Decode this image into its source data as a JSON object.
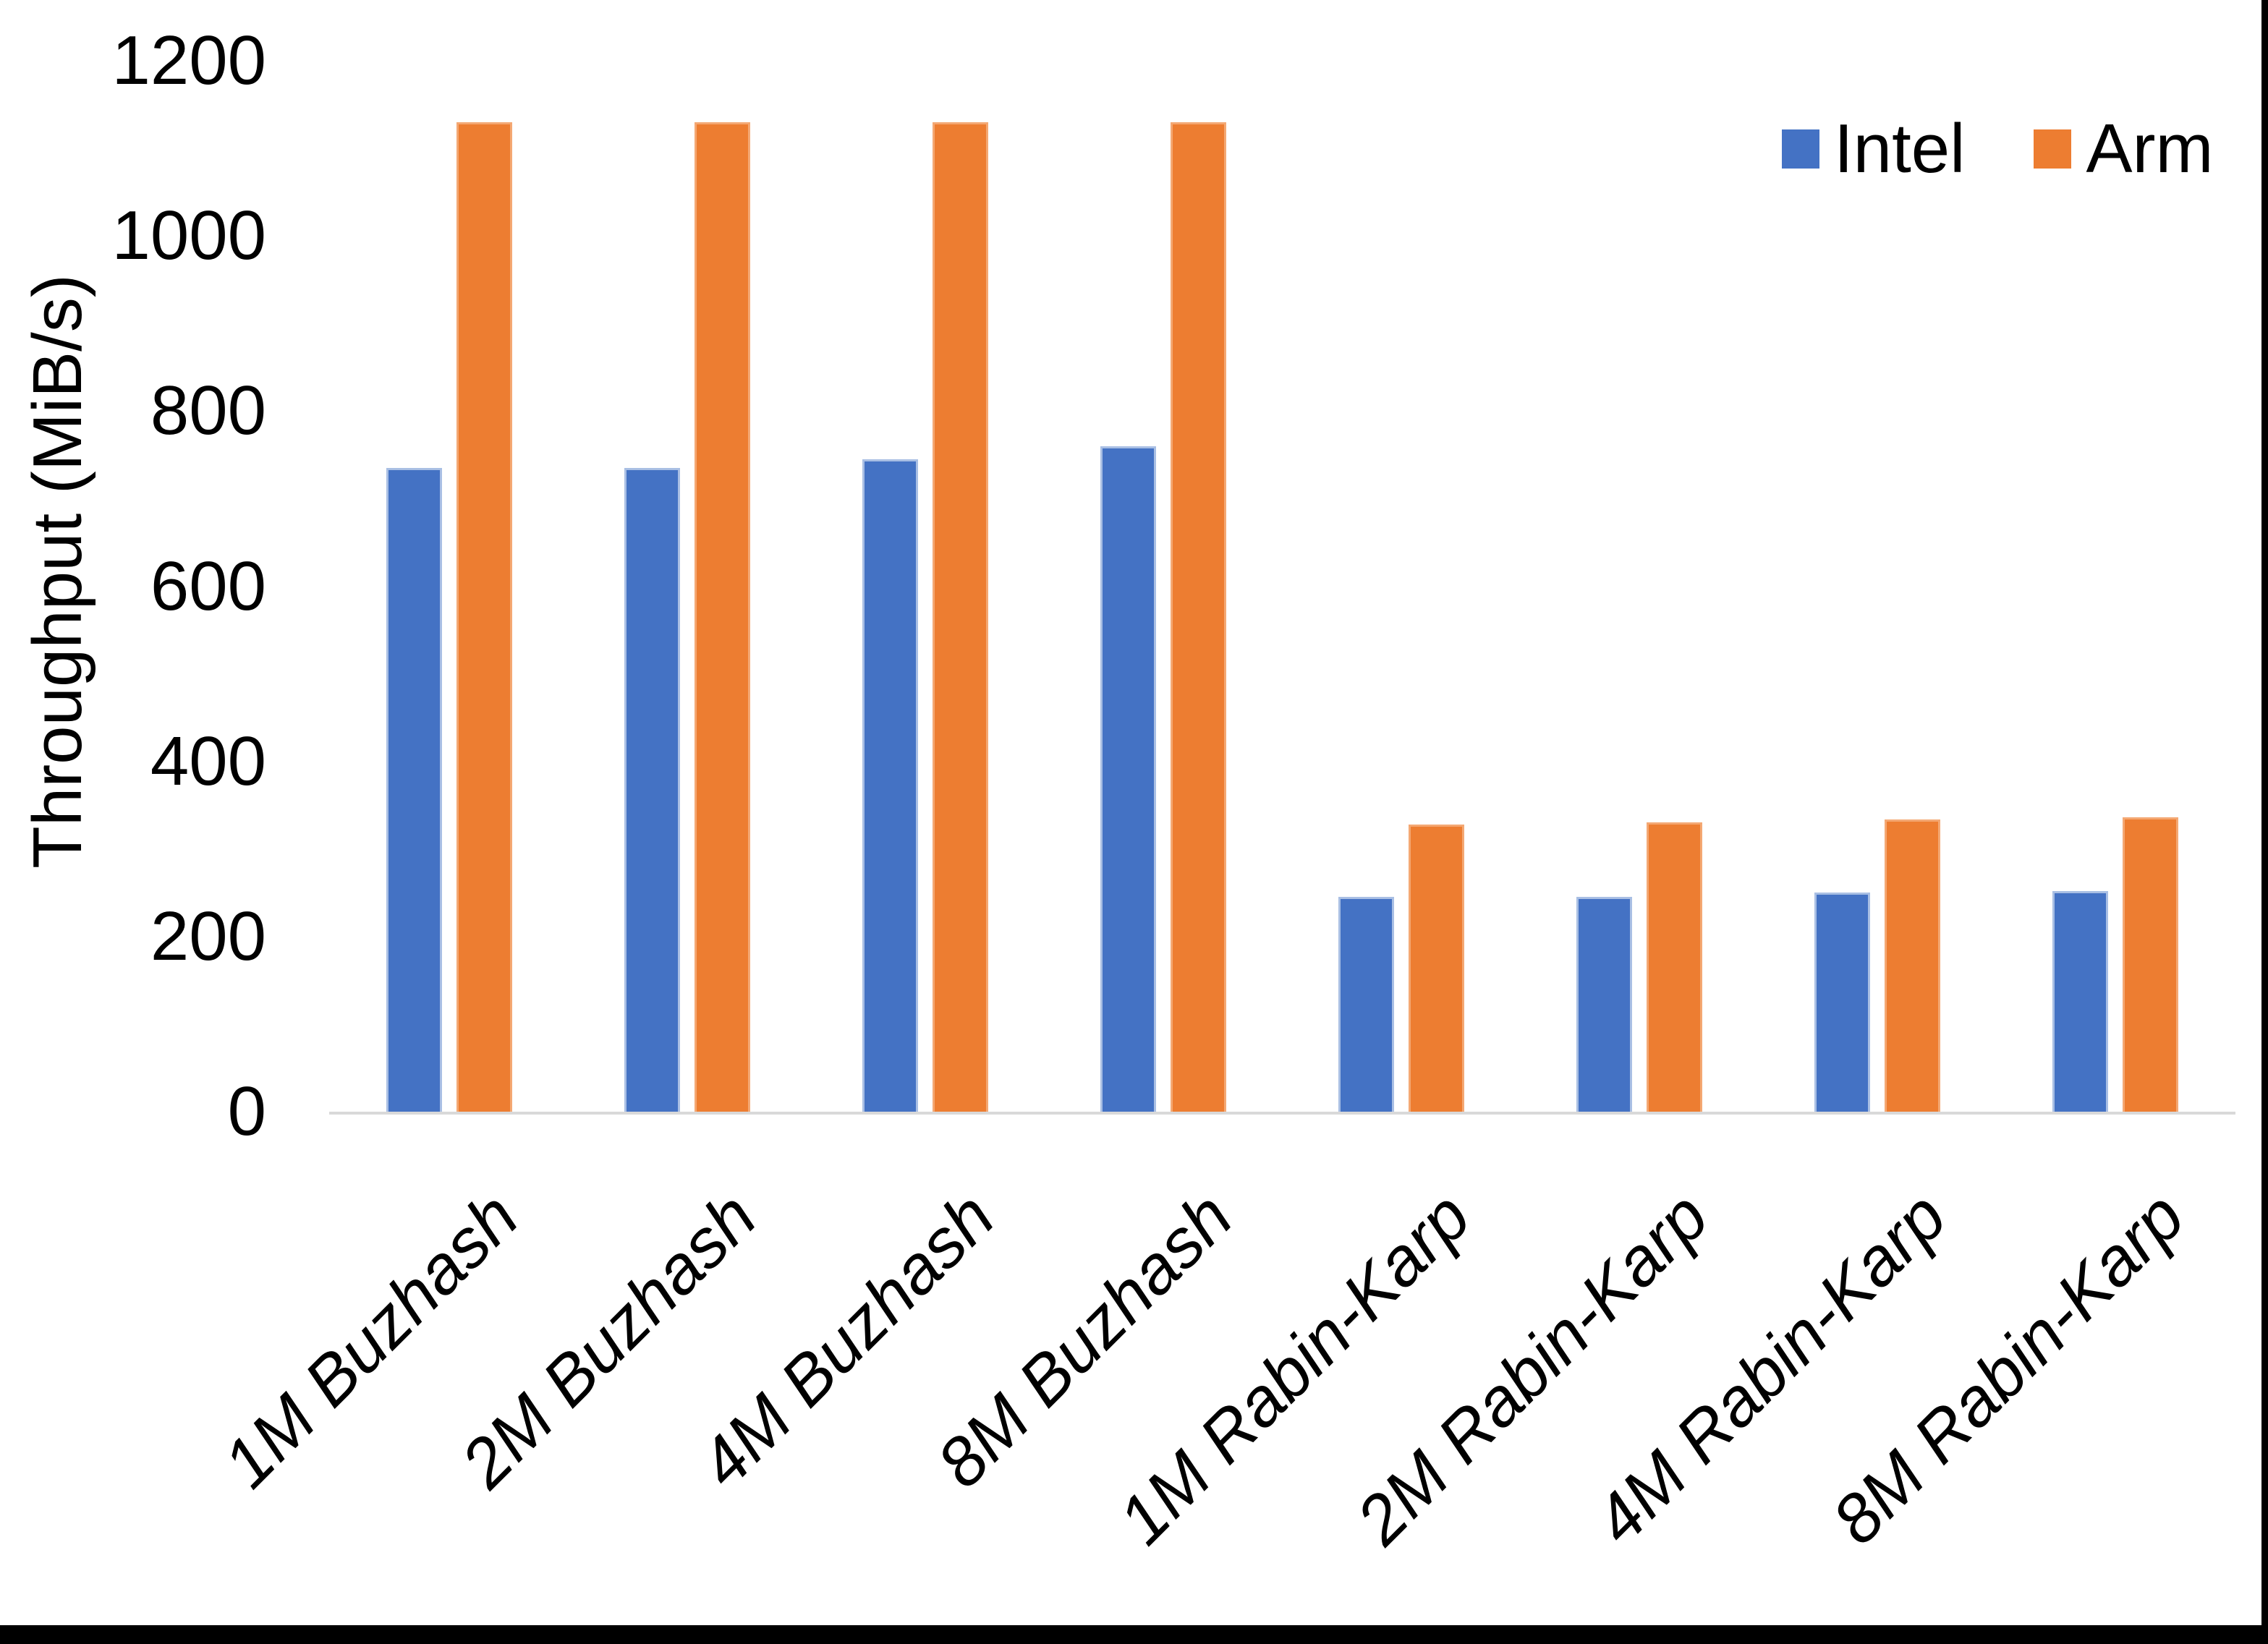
{
  "figure": {
    "background": "#ffffff",
    "border_right_color": "#000000",
    "border_bottom_color": "#000000"
  },
  "chart_data": {
    "type": "bar",
    "title": "",
    "xlabel": "",
    "ylabel": "Throughput (MiB/s)",
    "ylim": [
      0,
      1200
    ],
    "yticks": [
      0,
      200,
      400,
      600,
      800,
      1000,
      1200
    ],
    "grid": false,
    "legend_position": "top-right",
    "axis_line_color": "#D9D9D9",
    "text_color": "#000000",
    "categories": [
      "1M Buzhash",
      "2M Buzhash",
      "4M Buzhash",
      "8M Buzhash",
      "1M Rabin-Karp",
      "2M Rabin-Karp",
      "4M Rabin-Karp",
      "8M Rabin-Karp"
    ],
    "series": [
      {
        "name": "Intel",
        "color": "#4472C4",
        "edge_color": "#A9BFE4",
        "values": [
          735,
          735,
          745,
          760,
          245,
          245,
          250,
          252
        ]
      },
      {
        "name": "Arm",
        "color": "#ED7D31",
        "edge_color": "#F4A873",
        "values": [
          1130,
          1130,
          1130,
          1130,
          328,
          330,
          334,
          336
        ]
      }
    ]
  }
}
